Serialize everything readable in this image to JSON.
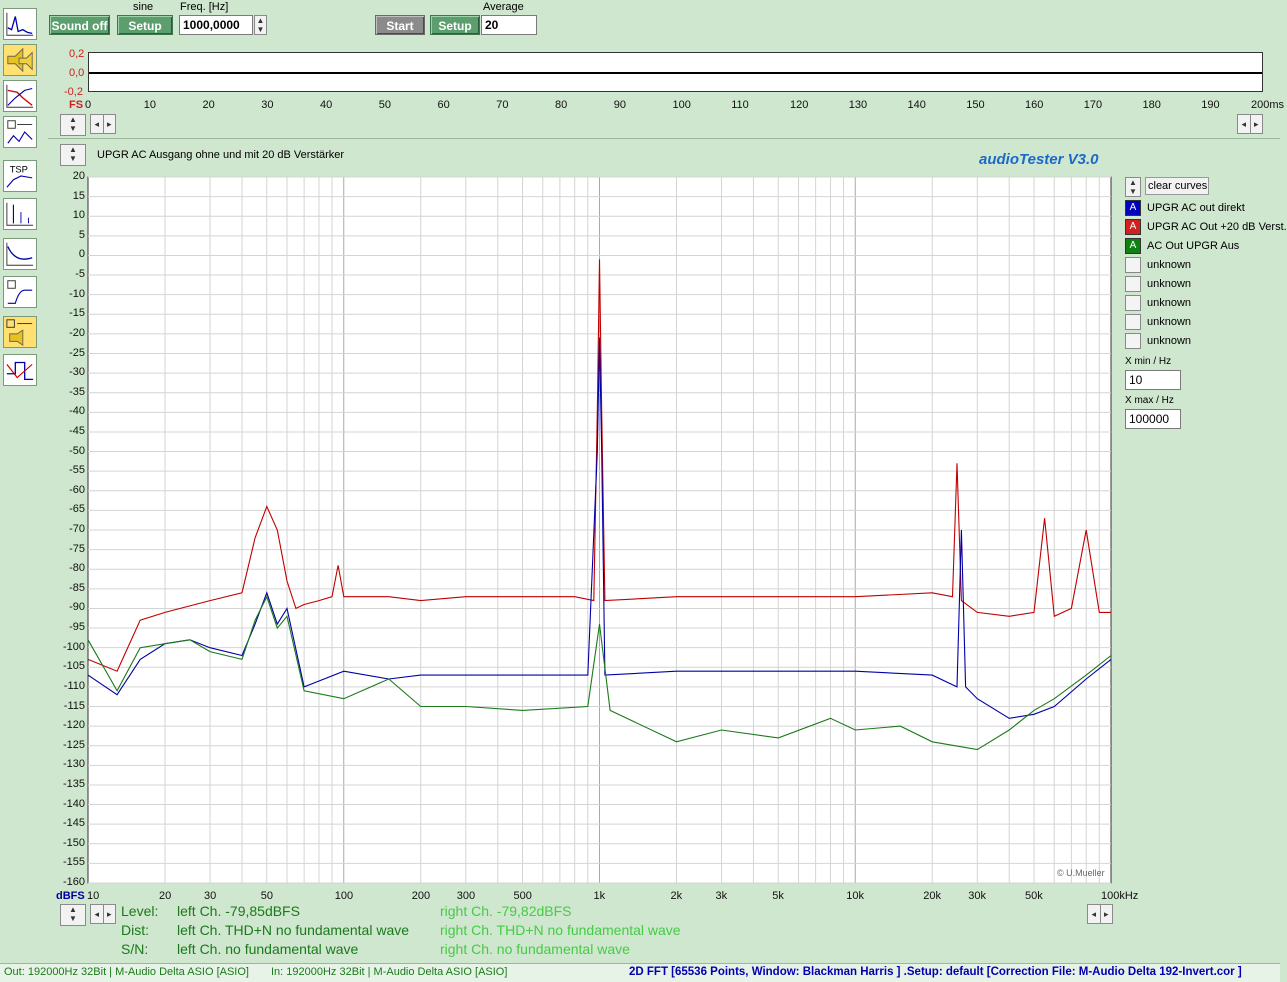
{
  "toolbar": {
    "sound_off_label": "Sound off",
    "sine_label": "sine",
    "setup_label": "Setup",
    "freq_label": "Freq. [Hz]",
    "freq_value": "1000,0000",
    "start_label": "Start",
    "setup2_label": "Setup",
    "average_label": "Average",
    "average_value": "20"
  },
  "sidebar": {
    "tsp_label": "TSP"
  },
  "time_scope": {
    "y_ticks": [
      "0,2",
      "0,0",
      "-0,2"
    ],
    "fs_label": "FS",
    "x_ticks": [
      "0",
      "10",
      "20",
      "30",
      "40",
      "50",
      "60",
      "70",
      "80",
      "90",
      "100",
      "110",
      "120",
      "130",
      "140",
      "150",
      "160",
      "170",
      "180",
      "190",
      "200ms"
    ]
  },
  "fft": {
    "title": "UPGR AC Ausgang ohne und mit 20 dB Verstärker",
    "brand": "audioTester  V3.0",
    "copyright": "© U.Mueller",
    "unit_label": "dBFS"
  },
  "chart_data": {
    "type": "line",
    "title": "UPGR AC Ausgang ohne und mit 20 dB Verstärker",
    "xlabel": "",
    "ylabel": "dBFS",
    "x_scale": "log",
    "xlim": [
      10,
      100000
    ],
    "ylim": [
      -160,
      20
    ],
    "grid": true,
    "y_ticks": [
      20,
      15,
      10,
      5,
      0,
      -5,
      -10,
      -15,
      -20,
      -25,
      -30,
      -35,
      -40,
      -45,
      -50,
      -55,
      -60,
      -65,
      -70,
      -75,
      -80,
      -85,
      -90,
      -95,
      -100,
      -105,
      -110,
      -115,
      -120,
      -125,
      -130,
      -135,
      -140,
      -145,
      -150,
      -155,
      -160
    ],
    "x_ticks": [
      {
        "v": 10,
        "t": "10"
      },
      {
        "v": 20,
        "t": "20"
      },
      {
        "v": 30,
        "t": "30"
      },
      {
        "v": 50,
        "t": "50"
      },
      {
        "v": 100,
        "t": "100"
      },
      {
        "v": 200,
        "t": "200"
      },
      {
        "v": 300,
        "t": "300"
      },
      {
        "v": 500,
        "t": "500"
      },
      {
        "v": 1000,
        "t": "1k"
      },
      {
        "v": 2000,
        "t": "2k"
      },
      {
        "v": 3000,
        "t": "3k"
      },
      {
        "v": 5000,
        "t": "5k"
      },
      {
        "v": 10000,
        "t": "10k"
      },
      {
        "v": 20000,
        "t": "20k"
      },
      {
        "v": 30000,
        "t": "30k"
      },
      {
        "v": 50000,
        "t": "50k"
      },
      {
        "v": 100000,
        "t": "100kHz"
      }
    ],
    "series": [
      {
        "name": "UPGR AC Out +20 dB Verst.",
        "color": "#c00000",
        "points": [
          [
            10,
            -103
          ],
          [
            13,
            -106
          ],
          [
            16,
            -93
          ],
          [
            20,
            -91
          ],
          [
            30,
            -88
          ],
          [
            40,
            -86
          ],
          [
            45,
            -72
          ],
          [
            50,
            -64
          ],
          [
            55,
            -70
          ],
          [
            60,
            -83
          ],
          [
            65,
            -90
          ],
          [
            70,
            -89
          ],
          [
            80,
            -88
          ],
          [
            90,
            -87
          ],
          [
            95,
            -79
          ],
          [
            100,
            -87
          ],
          [
            150,
            -87
          ],
          [
            200,
            -88
          ],
          [
            300,
            -87
          ],
          [
            500,
            -87
          ],
          [
            800,
            -87
          ],
          [
            950,
            -88
          ],
          [
            980,
            -40
          ],
          [
            1000,
            -1
          ],
          [
            1020,
            -40
          ],
          [
            1050,
            -88
          ],
          [
            2000,
            -87
          ],
          [
            5000,
            -87
          ],
          [
            10000,
            -87
          ],
          [
            20000,
            -86
          ],
          [
            24000,
            -87
          ],
          [
            25000,
            -53
          ],
          [
            26000,
            -88
          ],
          [
            30000,
            -91
          ],
          [
            40000,
            -92
          ],
          [
            50000,
            -91
          ],
          [
            55000,
            -67
          ],
          [
            60000,
            -92
          ],
          [
            70000,
            -90
          ],
          [
            80000,
            -70
          ],
          [
            90000,
            -91
          ],
          [
            100000,
            -91
          ]
        ]
      },
      {
        "name": "UPGR AC out direkt",
        "color": "#0000a8",
        "points": [
          [
            10,
            -107
          ],
          [
            13,
            -112
          ],
          [
            16,
            -103
          ],
          [
            20,
            -99
          ],
          [
            25,
            -98
          ],
          [
            30,
            -100
          ],
          [
            40,
            -102
          ],
          [
            45,
            -94
          ],
          [
            50,
            -86
          ],
          [
            55,
            -94
          ],
          [
            60,
            -90
          ],
          [
            70,
            -110
          ],
          [
            100,
            -106
          ],
          [
            150,
            -108
          ],
          [
            200,
            -107
          ],
          [
            300,
            -107
          ],
          [
            500,
            -107
          ],
          [
            900,
            -107
          ],
          [
            980,
            -50
          ],
          [
            1000,
            -21
          ],
          [
            1020,
            -50
          ],
          [
            1050,
            -107
          ],
          [
            2000,
            -106
          ],
          [
            5000,
            -106
          ],
          [
            8000,
            -106
          ],
          [
            10000,
            -106
          ],
          [
            20000,
            -107
          ],
          [
            25000,
            -110
          ],
          [
            26000,
            -70
          ],
          [
            27000,
            -110
          ],
          [
            30000,
            -113
          ],
          [
            40000,
            -118
          ],
          [
            50000,
            -117
          ],
          [
            60000,
            -115
          ],
          [
            80000,
            -108
          ],
          [
            100000,
            -103
          ]
        ]
      },
      {
        "name": "AC Out UPGR Aus",
        "color": "#1a7a1a",
        "points": [
          [
            10,
            -98
          ],
          [
            13,
            -111
          ],
          [
            16,
            -100
          ],
          [
            20,
            -99
          ],
          [
            25,
            -98
          ],
          [
            30,
            -101
          ],
          [
            40,
            -103
          ],
          [
            45,
            -93
          ],
          [
            50,
            -87
          ],
          [
            55,
            -95
          ],
          [
            60,
            -92
          ],
          [
            70,
            -111
          ],
          [
            100,
            -113
          ],
          [
            150,
            -108
          ],
          [
            200,
            -115
          ],
          [
            300,
            -115
          ],
          [
            500,
            -116
          ],
          [
            900,
            -115
          ],
          [
            1000,
            -94
          ],
          [
            1100,
            -116
          ],
          [
            2000,
            -124
          ],
          [
            3000,
            -121
          ],
          [
            5000,
            -123
          ],
          [
            8000,
            -118
          ],
          [
            10000,
            -121
          ],
          [
            15000,
            -120
          ],
          [
            20000,
            -124
          ],
          [
            30000,
            -126
          ],
          [
            40000,
            -121
          ],
          [
            50000,
            -116
          ],
          [
            60000,
            -113
          ],
          [
            80000,
            -107
          ],
          [
            100000,
            -102
          ]
        ]
      }
    ]
  },
  "legend": {
    "clear_label": "clear curves",
    "items": [
      {
        "label": "UPGR AC out direkt",
        "color": "#0000c0",
        "mark": "A"
      },
      {
        "label": "UPGR AC Out +20 dB Verst.",
        "color": "#d02020",
        "mark": "A"
      },
      {
        "label": "AC Out UPGR Aus",
        "color": "#108010",
        "mark": "A"
      },
      {
        "label": "unknown",
        "color": "",
        "mark": ""
      },
      {
        "label": "unknown",
        "color": "",
        "mark": ""
      },
      {
        "label": "unknown",
        "color": "",
        "mark": ""
      },
      {
        "label": "unknown",
        "color": "",
        "mark": ""
      },
      {
        "label": "unknown",
        "color": "",
        "mark": ""
      }
    ],
    "xmin_label": "X min / Hz",
    "xmin_value": "10",
    "xmax_label": "X max / Hz",
    "xmax_value": "100000"
  },
  "measurements": {
    "level_label": "Level:",
    "dist_label": "Dist:",
    "sn_label": "S/N:",
    "left_level": "left Ch. -79,85dBFS",
    "left_dist": "left Ch. THD+N  no fundamental wave",
    "left_sn": "left Ch.  no fundamental wave",
    "right_level": "right Ch. -79,82dBFS",
    "right_dist": "right Ch. THD+N  no fundamental wave",
    "right_sn": "right Ch.  no fundamental wave"
  },
  "statusbar": {
    "out": "Out: 192000Hz 32Bit  | M-Audio Delta ASIO [ASIO]",
    "in": "In: 192000Hz 32Bit  | M-Audio Delta ASIO [ASIO]",
    "fft_info": "2D FFT [65536 Points, Window: Blackman Harris ]  .Setup:  default  [Correction File: M-Audio Delta 192-Invert.cor ]"
  }
}
